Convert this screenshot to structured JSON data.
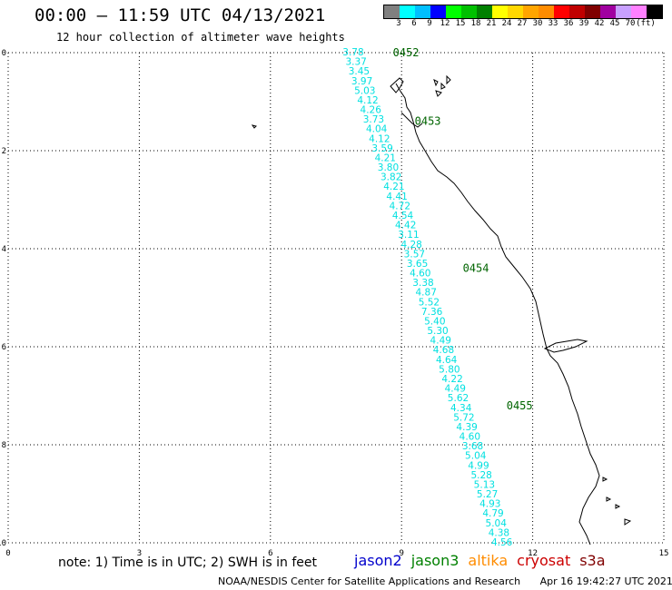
{
  "header": {
    "title": "00:00 – 11:59 UTC 04/13/2021",
    "subtitle": "12 hour collection of altimeter wave heights"
  },
  "colorbar": {
    "unit": "(ft)",
    "labels": [
      "3",
      "6",
      "9",
      "12",
      "15",
      "18",
      "21",
      "24",
      "27",
      "30",
      "33",
      "36",
      "39",
      "42",
      "45",
      "70"
    ],
    "colors": [
      "#808080",
      "#00ffff",
      "#00bfff",
      "#0000ff",
      "#00ff00",
      "#00c000",
      "#008000",
      "#ffff00",
      "#ffd700",
      "#ffa500",
      "#ff8c00",
      "#ff0000",
      "#c00000",
      "#800000",
      "#a000a0",
      "#c8a0ff",
      "#ff80ff",
      "#000000"
    ]
  },
  "chart_data": {
    "type": "map-track",
    "xlim": [
      0,
      15
    ],
    "ylim": [
      -10,
      0
    ],
    "x_ticks": [
      "0",
      "3",
      "6",
      "9",
      "12",
      "15"
    ],
    "y_ticks": [
      "0",
      "-2",
      "-4",
      "-6",
      "-8",
      "-10"
    ],
    "track_color": "#00e0e0",
    "swh_values": [
      "3.78",
      "3.37",
      "3.45",
      "3.97",
      "5.03",
      "4.12",
      "4.26",
      "3.73",
      "4.04",
      "4.12",
      "3.59",
      "4.21",
      "3.80",
      "3.82",
      "4.21",
      "4.41",
      "4.72",
      "4.54",
      "4.42",
      "3.11",
      "4.28",
      "3.57",
      "3.65",
      "4.60",
      "3.38",
      "4.87",
      "5.52",
      "7.36",
      "5.40",
      "5.30",
      "4.49",
      "4.68",
      "4.64",
      "5.80",
      "4.22",
      "4.49",
      "5.62",
      "4.34",
      "5.72",
      "4.39",
      "4.60",
      "3.68",
      "5.04",
      "4.99",
      "5.28",
      "5.13",
      "5.27",
      "4.93",
      "4.79",
      "5.04",
      "4.38",
      "4.56"
    ],
    "track_start": [
      8.15,
      0.0
    ],
    "track_end": [
      11.55,
      -10.0
    ],
    "time_labels": [
      {
        "text": "0452",
        "x": 8.8,
        "y": 0.0
      },
      {
        "text": "0453",
        "x": 9.3,
        "y": -1.4
      },
      {
        "text": "0454",
        "x": 10.4,
        "y": -4.4
      },
      {
        "text": "0455",
        "x": 11.4,
        "y": -7.2
      }
    ],
    "time_label_color": "#006400"
  },
  "footer": {
    "note": "note: 1) Time is in UTC; 2) SWH is in feet",
    "satellites": [
      {
        "name": "jason2",
        "color": "#0000cc"
      },
      {
        "name": "jason3",
        "color": "#008000"
      },
      {
        "name": "altika",
        "color": "#ff8c00"
      },
      {
        "name": "cryosat",
        "color": "#cc0000"
      },
      {
        "name": "s3a",
        "color": "#800000"
      }
    ],
    "credit": "NOAA/NESDIS Center for Satellite Applications and Research",
    "timestamp": "Apr 16 19:42:27 UTC 2021"
  }
}
